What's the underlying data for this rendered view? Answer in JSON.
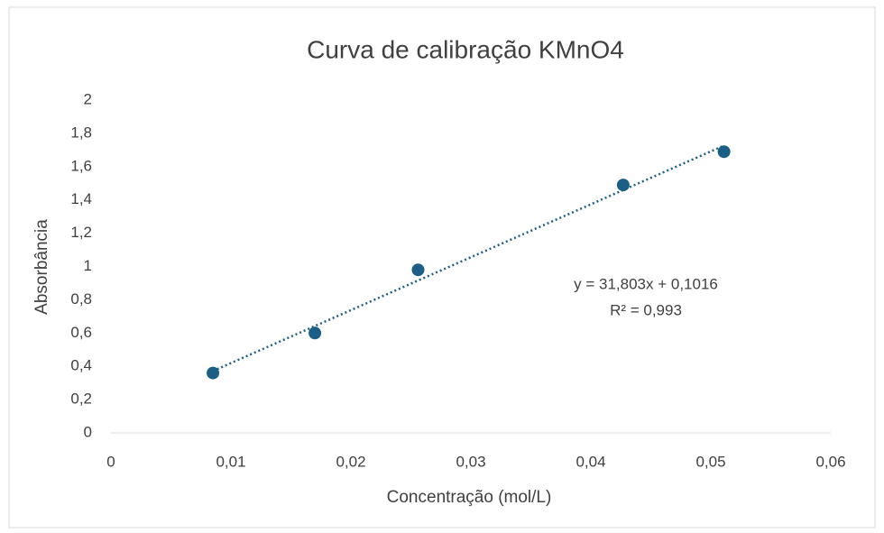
{
  "chart_data": {
    "type": "scatter",
    "title": "Curva de calibração KMnO4",
    "xlabel": "Concentração (mol/L)",
    "ylabel": "Absorbância",
    "x": [
      0.0085,
      0.017,
      0.0256,
      0.0427,
      0.0511
    ],
    "values": [
      0.36,
      0.6,
      0.98,
      1.49,
      1.69
    ],
    "color": "#1c5f86",
    "xlim": [
      0,
      0.06
    ],
    "xticks": [
      0,
      {
        "value": 0.01,
        "label": "0,01"
      },
      {
        "value": 0.02,
        "label": "0,02"
      },
      {
        "value": 0.03,
        "label": "0,03"
      },
      {
        "value": 0.04,
        "label": "0,04"
      },
      {
        "value": 0.05,
        "label": "0,05"
      },
      {
        "value": 0.06,
        "label": "0,06"
      }
    ],
    "ylim": [
      0,
      2
    ],
    "yticks": [
      0,
      {
        "value": 0.2,
        "label": "0,2"
      },
      {
        "value": 0.4,
        "label": "0,4"
      },
      {
        "value": 0.6,
        "label": "0,6"
      },
      {
        "value": 0.8,
        "label": "0,8"
      },
      1,
      {
        "value": 1.2,
        "label": "1,2"
      },
      {
        "value": 1.4,
        "label": "1,4"
      },
      {
        "value": 1.6,
        "label": "1,6"
      },
      {
        "value": 1.8,
        "label": "1,8"
      },
      2
    ],
    "trendline": {
      "slope": 31.803,
      "intercept": 0.1016,
      "equation": "y = 31,803x + 0,1016",
      "r2": "R² = 0,993"
    }
  }
}
